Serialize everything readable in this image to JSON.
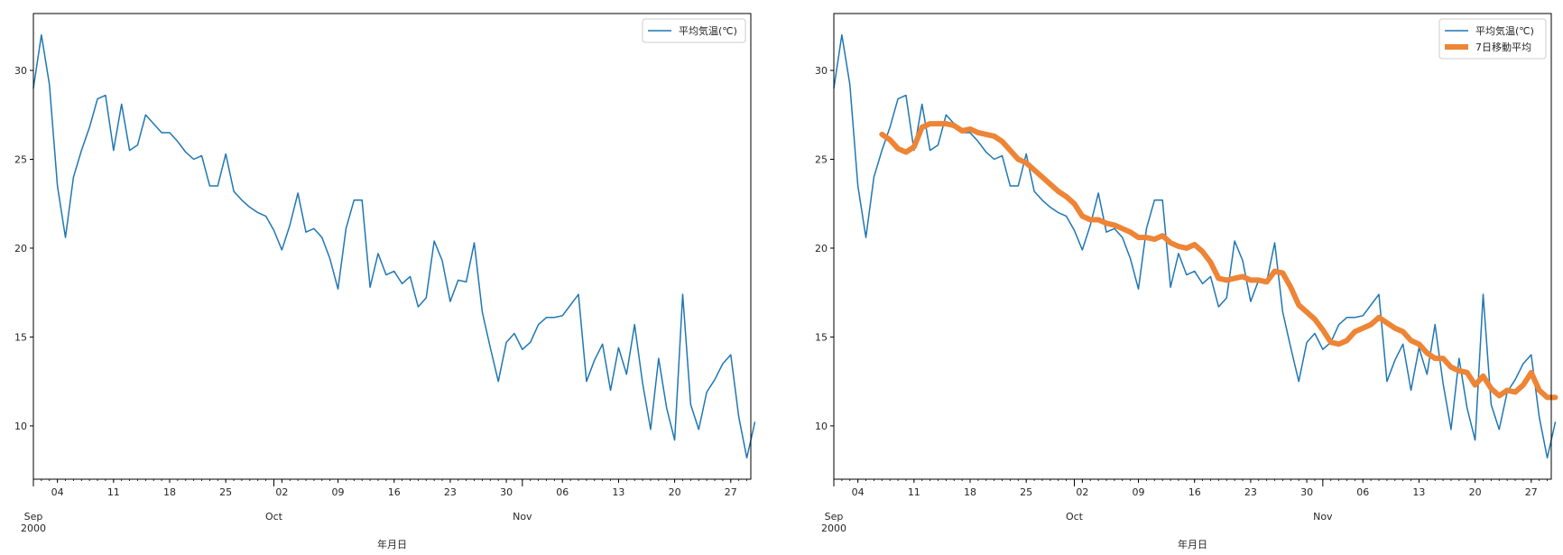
{
  "chart_data": [
    {
      "type": "line",
      "title": "",
      "xlabel": "年月日",
      "ylabel": "",
      "ylim": [
        7,
        33.2
      ],
      "x_range": [
        "2000-09-01",
        "2000-11-30"
      ],
      "grid": false,
      "legend_placement": "top-right",
      "y_ticks": [
        "10",
        "15",
        "20",
        "25",
        "30"
      ],
      "x_ticks": {
        "major": [
          {
            "date": "2000-09-01",
            "label": "Sep\n2000"
          },
          {
            "date": "2000-10-01",
            "label": "Oct"
          },
          {
            "date": "2000-11-01",
            "label": "Nov"
          }
        ],
        "minor": [
          {
            "date": "2000-09-04",
            "label": "04"
          },
          {
            "date": "2000-09-11",
            "label": "11"
          },
          {
            "date": "2000-09-18",
            "label": "18"
          },
          {
            "date": "2000-09-25",
            "label": "25"
          },
          {
            "date": "2000-10-02",
            "label": "02"
          },
          {
            "date": "2000-10-09",
            "label": "09"
          },
          {
            "date": "2000-10-16",
            "label": "16"
          },
          {
            "date": "2000-10-23",
            "label": "23"
          },
          {
            "date": "2000-10-30",
            "label": "30"
          },
          {
            "date": "2000-11-06",
            "label": "06"
          },
          {
            "date": "2000-11-13",
            "label": "13"
          },
          {
            "date": "2000-11-20",
            "label": "20"
          },
          {
            "date": "2000-11-27",
            "label": "27"
          }
        ]
      },
      "series": [
        {
          "name": "平均気温(℃)",
          "color": "#1f77b4",
          "linewidth": 1.5,
          "x_start": "2000-09-01",
          "x_step_days": 1,
          "values": [
            29.0,
            32.0,
            29.2,
            23.5,
            20.6,
            24.0,
            25.5,
            26.8,
            28.4,
            28.6,
            25.5,
            28.1,
            25.5,
            25.8,
            27.5,
            27.0,
            26.5,
            26.5,
            26.0,
            25.4,
            25.0,
            25.2,
            23.5,
            23.5,
            25.3,
            23.2,
            22.7,
            22.3,
            22.0,
            21.8,
            21.0,
            19.9,
            21.3,
            23.1,
            20.9,
            21.1,
            20.6,
            19.4,
            17.7,
            21.1,
            22.7,
            22.7,
            17.8,
            19.7,
            18.5,
            18.7,
            18.0,
            18.4,
            16.7,
            17.2,
            20.4,
            19.3,
            17.0,
            18.2,
            18.1,
            20.3,
            16.4,
            14.4,
            12.5,
            14.7,
            15.2,
            14.3,
            14.7,
            15.7,
            16.1,
            16.1,
            16.2,
            16.8,
            17.4,
            12.5,
            13.7,
            14.6,
            12.0,
            14.4,
            12.9,
            15.7,
            12.4,
            9.8,
            13.8,
            11.0,
            9.2,
            17.4,
            11.2,
            9.8,
            11.9,
            12.6,
            13.5,
            14.0,
            10.5,
            8.2,
            10.2
          ]
        }
      ]
    },
    {
      "type": "line",
      "title": "",
      "xlabel": "年月日",
      "ylabel": "",
      "ylim": [
        7,
        33.2
      ],
      "x_range": [
        "2000-09-01",
        "2000-11-30"
      ],
      "grid": false,
      "legend_placement": "top-right",
      "y_ticks": [
        "10",
        "15",
        "20",
        "25",
        "30"
      ],
      "x_ticks": {
        "major": [
          {
            "date": "2000-09-01",
            "label": "Sep\n2000"
          },
          {
            "date": "2000-10-01",
            "label": "Oct"
          },
          {
            "date": "2000-11-01",
            "label": "Nov"
          }
        ],
        "minor": [
          {
            "date": "2000-09-04",
            "label": "04"
          },
          {
            "date": "2000-09-11",
            "label": "11"
          },
          {
            "date": "2000-09-18",
            "label": "18"
          },
          {
            "date": "2000-09-25",
            "label": "25"
          },
          {
            "date": "2000-10-02",
            "label": "02"
          },
          {
            "date": "2000-10-09",
            "label": "09"
          },
          {
            "date": "2000-10-16",
            "label": "16"
          },
          {
            "date": "2000-10-23",
            "label": "23"
          },
          {
            "date": "2000-10-30",
            "label": "30"
          },
          {
            "date": "2000-11-06",
            "label": "06"
          },
          {
            "date": "2000-11-13",
            "label": "13"
          },
          {
            "date": "2000-11-20",
            "label": "20"
          },
          {
            "date": "2000-11-27",
            "label": "27"
          }
        ]
      },
      "series": [
        {
          "name": "平均気温(℃)",
          "color": "#1f77b4",
          "linewidth": 1.5,
          "x_start": "2000-09-01",
          "x_step_days": 1,
          "values": [
            29.0,
            32.0,
            29.2,
            23.5,
            20.6,
            24.0,
            25.5,
            26.8,
            28.4,
            28.6,
            25.5,
            28.1,
            25.5,
            25.8,
            27.5,
            27.0,
            26.5,
            26.5,
            26.0,
            25.4,
            25.0,
            25.2,
            23.5,
            23.5,
            25.3,
            23.2,
            22.7,
            22.3,
            22.0,
            21.8,
            21.0,
            19.9,
            21.3,
            23.1,
            20.9,
            21.1,
            20.6,
            19.4,
            17.7,
            21.1,
            22.7,
            22.7,
            17.8,
            19.7,
            18.5,
            18.7,
            18.0,
            18.4,
            16.7,
            17.2,
            20.4,
            19.3,
            17.0,
            18.2,
            18.1,
            20.3,
            16.4,
            14.4,
            12.5,
            14.7,
            15.2,
            14.3,
            14.7,
            15.7,
            16.1,
            16.1,
            16.2,
            16.8,
            17.4,
            12.5,
            13.7,
            14.6,
            12.0,
            14.4,
            12.9,
            15.7,
            12.4,
            9.8,
            13.8,
            11.0,
            9.2,
            17.4,
            11.2,
            9.8,
            11.9,
            12.6,
            13.5,
            14.0,
            10.5,
            8.2,
            10.2
          ]
        },
        {
          "name": "7日移動平均",
          "color": "#ee8435",
          "linewidth": 6,
          "x_start": "2000-09-07",
          "x_step_days": 1,
          "values": [
            26.4,
            26.1,
            25.6,
            25.4,
            25.7,
            26.8,
            27.0,
            27.0,
            27.0,
            26.9,
            26.6,
            26.7,
            26.5,
            26.4,
            26.3,
            26.0,
            25.5,
            25.0,
            24.8,
            24.4,
            24.0,
            23.6,
            23.2,
            22.9,
            22.5,
            21.8,
            21.6,
            21.6,
            21.4,
            21.3,
            21.1,
            20.9,
            20.6,
            20.6,
            20.5,
            20.7,
            20.3,
            20.1,
            20.0,
            20.2,
            19.8,
            19.2,
            18.3,
            18.2,
            18.3,
            18.4,
            18.2,
            18.2,
            18.1,
            18.7,
            18.6,
            17.8,
            16.8,
            16.4,
            16.0,
            15.4,
            14.7,
            14.6,
            14.8,
            15.3,
            15.5,
            15.7,
            16.1,
            15.8,
            15.5,
            15.3,
            14.8,
            14.6,
            14.1,
            13.8,
            13.8,
            13.3,
            13.1,
            13.0,
            12.3,
            12.8,
            12.1,
            11.7,
            12.0,
            11.9,
            12.3,
            13.0,
            12.0,
            11.6,
            11.6
          ]
        }
      ]
    }
  ]
}
